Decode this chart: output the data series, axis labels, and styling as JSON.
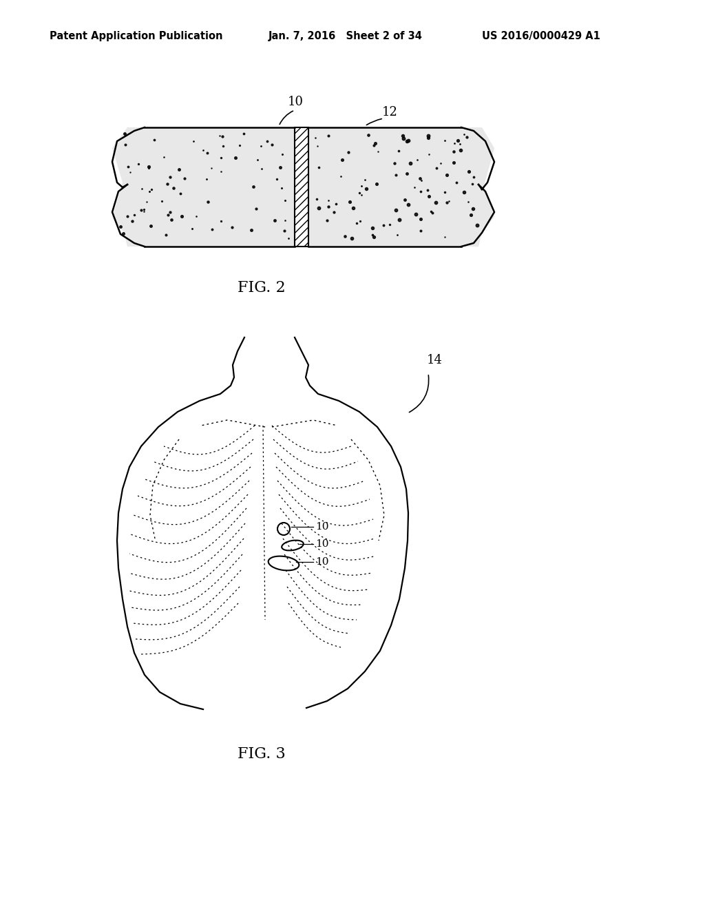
{
  "bg_color": "#ffffff",
  "header_left": "Patent Application Publication",
  "header_mid": "Jan. 7, 2016   Sheet 2 of 34",
  "header_right": "US 2016/0000429 A1",
  "header_fontsize": 10.5,
  "fig2_label": "FIG. 2",
  "fig3_label": "FIG. 3",
  "line_color": "#000000",
  "tissue_color": "#f0f0f0"
}
